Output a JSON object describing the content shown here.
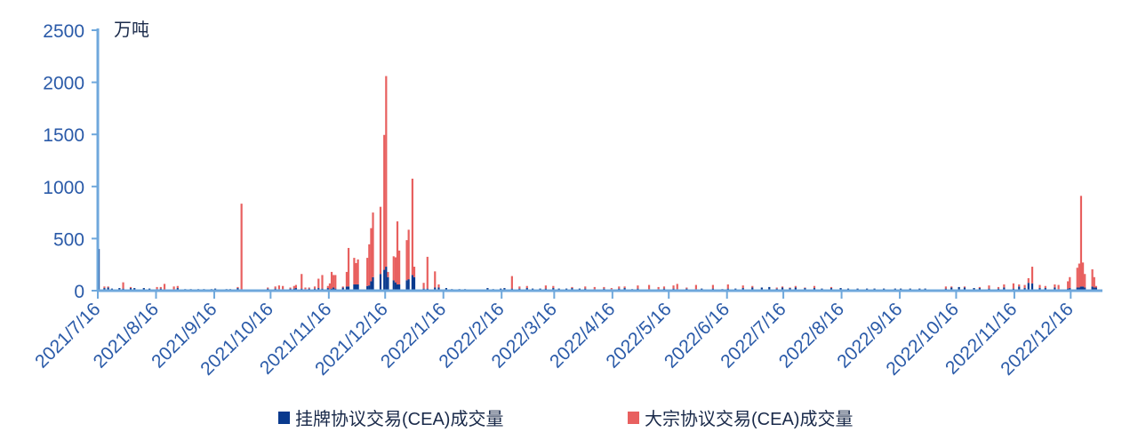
{
  "chart_data": {
    "type": "bar",
    "stacked": true,
    "unit_label": "万吨",
    "ylim": [
      0,
      2500
    ],
    "yticks": [
      0,
      500,
      1000,
      1500,
      2000,
      2500
    ],
    "xlim": [
      "2021-07-16",
      "2022-12-31"
    ],
    "xticks": [
      "2021/7/16",
      "2021/8/16",
      "2021/9/16",
      "2021/10/16",
      "2021/11/16",
      "2021/12/16",
      "2022/1/16",
      "2022/2/16",
      "2022/3/16",
      "2022/4/16",
      "2022/5/16",
      "2022/6/16",
      "2022/7/16",
      "2022/8/16",
      "2022/9/16",
      "2022/10/16",
      "2022/11/16",
      "2022/12/16"
    ],
    "grid": false,
    "legend_position": "bottom",
    "colors": {
      "listed": "#0a3a8e",
      "block": "#e8605f",
      "axis": "#6fa8dc",
      "tick_text": "#2a5aa8"
    },
    "series": [
      {
        "name": "挂牌协议交易(CEA)成交量",
        "color": "#0a3a8e"
      },
      {
        "name": "大宗协议交易(CEA)成交量",
        "color": "#e8605f"
      }
    ],
    "points_columns": [
      "date",
      "挂牌协议交易(CEA)成交量",
      "大宗协议交易(CEA)成交量"
    ],
    "points": [
      [
        "2021-07-16",
        400,
        0
      ],
      [
        "2021-07-19",
        25,
        15
      ],
      [
        "2021-07-21",
        30,
        10
      ],
      [
        "2021-07-23",
        20,
        0
      ],
      [
        "2021-07-27",
        25,
        0
      ],
      [
        "2021-07-29",
        20,
        60
      ],
      [
        "2021-08-02",
        25,
        10
      ],
      [
        "2021-08-04",
        25,
        0
      ],
      [
        "2021-08-09",
        25,
        0
      ],
      [
        "2021-08-12",
        20,
        0
      ],
      [
        "2021-08-16",
        15,
        20
      ],
      [
        "2021-08-18",
        20,
        15
      ],
      [
        "2021-08-20",
        10,
        55
      ],
      [
        "2021-08-25",
        10,
        30
      ],
      [
        "2021-08-27",
        25,
        20
      ],
      [
        "2021-08-31",
        15,
        0
      ],
      [
        "2021-09-03",
        15,
        0
      ],
      [
        "2021-09-07",
        15,
        0
      ],
      [
        "2021-09-10",
        15,
        0
      ],
      [
        "2021-09-14",
        15,
        0
      ],
      [
        "2021-09-16",
        20,
        0
      ],
      [
        "2021-09-22",
        15,
        0
      ],
      [
        "2021-09-24",
        15,
        0
      ],
      [
        "2021-09-28",
        25,
        10
      ],
      [
        "2021-09-30",
        15,
        820
      ],
      [
        "2021-10-12",
        10,
        0
      ],
      [
        "2021-10-14",
        20,
        10
      ],
      [
        "2021-10-18",
        20,
        20
      ],
      [
        "2021-10-20",
        15,
        35
      ],
      [
        "2021-10-22",
        15,
        30
      ],
      [
        "2021-10-26",
        20,
        10
      ],
      [
        "2021-10-28",
        20,
        25
      ],
      [
        "2021-10-29",
        25,
        30
      ],
      [
        "2021-11-01",
        20,
        140
      ],
      [
        "2021-11-03",
        15,
        15
      ],
      [
        "2021-11-05",
        20,
        10
      ],
      [
        "2021-11-08",
        20,
        20
      ],
      [
        "2021-11-10",
        25,
        90
      ],
      [
        "2021-11-12",
        20,
        130
      ],
      [
        "2021-11-15",
        25,
        20
      ],
      [
        "2021-11-16",
        10,
        60
      ],
      [
        "2021-11-17",
        20,
        160
      ],
      [
        "2021-11-18",
        30,
        120
      ],
      [
        "2021-11-19",
        20,
        130
      ],
      [
        "2021-11-23",
        30,
        10
      ],
      [
        "2021-11-25",
        40,
        140
      ],
      [
        "2021-11-26",
        40,
        370
      ],
      [
        "2021-11-29",
        60,
        255
      ],
      [
        "2021-11-30",
        60,
        205
      ],
      [
        "2021-12-01",
        60,
        240
      ],
      [
        "2021-12-06",
        45,
        270
      ],
      [
        "2021-12-07",
        50,
        395
      ],
      [
        "2021-12-08",
        90,
        510
      ],
      [
        "2021-12-09",
        130,
        620
      ],
      [
        "2021-12-13",
        160,
        645
      ],
      [
        "2021-12-15",
        200,
        1295
      ],
      [
        "2021-12-16",
        230,
        1830
      ],
      [
        "2021-12-17",
        130,
        50
      ],
      [
        "2021-12-20",
        100,
        230
      ],
      [
        "2021-12-21",
        80,
        240
      ],
      [
        "2021-12-22",
        60,
        605
      ],
      [
        "2021-12-23",
        60,
        325
      ],
      [
        "2021-12-27",
        100,
        385
      ],
      [
        "2021-12-28",
        110,
        475
      ],
      [
        "2021-12-30",
        150,
        925
      ],
      [
        "2021-12-31",
        130,
        100
      ],
      [
        "2022-01-05",
        20,
        55
      ],
      [
        "2022-01-07",
        20,
        305
      ],
      [
        "2022-01-11",
        30,
        155
      ],
      [
        "2022-01-13",
        30,
        30
      ],
      [
        "2022-01-17",
        25,
        0
      ],
      [
        "2022-01-20",
        15,
        0
      ],
      [
        "2022-01-24",
        15,
        0
      ],
      [
        "2022-01-27",
        15,
        0
      ],
      [
        "2022-02-08",
        25,
        0
      ],
      [
        "2022-02-11",
        15,
        0
      ],
      [
        "2022-02-15",
        20,
        0
      ],
      [
        "2022-02-17",
        25,
        0
      ],
      [
        "2022-02-21",
        20,
        120
      ],
      [
        "2022-02-25",
        20,
        20
      ],
      [
        "2022-03-01",
        25,
        20
      ],
      [
        "2022-03-04",
        20,
        0
      ],
      [
        "2022-03-08",
        20,
        0
      ],
      [
        "2022-03-11",
        20,
        30
      ],
      [
        "2022-03-15",
        25,
        20
      ],
      [
        "2022-03-18",
        20,
        0
      ],
      [
        "2022-03-22",
        20,
        0
      ],
      [
        "2022-03-25",
        25,
        10
      ],
      [
        "2022-03-29",
        20,
        0
      ],
      [
        "2022-04-01",
        20,
        20
      ],
      [
        "2022-04-06",
        15,
        20
      ],
      [
        "2022-04-11",
        20,
        15
      ],
      [
        "2022-04-15",
        15,
        10
      ],
      [
        "2022-04-19",
        20,
        20
      ],
      [
        "2022-04-22",
        25,
        15
      ],
      [
        "2022-04-26",
        15,
        0
      ],
      [
        "2022-04-29",
        20,
        30
      ],
      [
        "2022-05-05",
        15,
        40
      ],
      [
        "2022-05-10",
        15,
        20
      ],
      [
        "2022-05-13",
        20,
        20
      ],
      [
        "2022-05-18",
        20,
        30
      ],
      [
        "2022-05-20",
        15,
        50
      ],
      [
        "2022-05-25",
        20,
        10
      ],
      [
        "2022-05-30",
        15,
        40
      ],
      [
        "2022-06-02",
        20,
        0
      ],
      [
        "2022-06-08",
        20,
        35
      ],
      [
        "2022-06-13",
        15,
        0
      ],
      [
        "2022-06-16",
        20,
        40
      ],
      [
        "2022-06-20",
        20,
        0
      ],
      [
        "2022-06-24",
        25,
        25
      ],
      [
        "2022-06-29",
        30,
        15
      ],
      [
        "2022-07-04",
        30,
        0
      ],
      [
        "2022-07-08",
        35,
        0
      ],
      [
        "2022-07-12",
        20,
        10
      ],
      [
        "2022-07-15",
        30,
        10
      ],
      [
        "2022-07-19",
        25,
        5
      ],
      [
        "2022-07-22",
        30,
        15
      ],
      [
        "2022-07-27",
        25,
        5
      ],
      [
        "2022-08-01",
        25,
        20
      ],
      [
        "2022-08-05",
        20,
        0
      ],
      [
        "2022-08-10",
        25,
        10
      ],
      [
        "2022-08-15",
        25,
        0
      ],
      [
        "2022-08-19",
        20,
        0
      ],
      [
        "2022-08-24",
        20,
        0
      ],
      [
        "2022-08-29",
        20,
        0
      ],
      [
        "2022-09-02",
        20,
        0
      ],
      [
        "2022-09-07",
        20,
        0
      ],
      [
        "2022-09-13",
        20,
        0
      ],
      [
        "2022-09-16",
        20,
        0
      ],
      [
        "2022-09-21",
        20,
        0
      ],
      [
        "2022-09-26",
        20,
        0
      ],
      [
        "2022-09-29",
        20,
        0
      ],
      [
        "2022-10-10",
        20,
        20
      ],
      [
        "2022-10-13",
        30,
        10
      ],
      [
        "2022-10-17",
        35,
        0
      ],
      [
        "2022-10-20",
        30,
        10
      ],
      [
        "2022-10-25",
        25,
        0
      ],
      [
        "2022-10-28",
        25,
        10
      ],
      [
        "2022-11-02",
        20,
        30
      ],
      [
        "2022-11-07",
        20,
        15
      ],
      [
        "2022-11-10",
        30,
        30
      ],
      [
        "2022-11-15",
        20,
        50
      ],
      [
        "2022-11-18",
        40,
        20
      ],
      [
        "2022-11-21",
        25,
        30
      ],
      [
        "2022-11-23",
        75,
        45
      ],
      [
        "2022-11-25",
        70,
        160
      ],
      [
        "2022-11-29",
        25,
        30
      ],
      [
        "2022-12-02",
        25,
        20
      ],
      [
        "2022-12-07",
        30,
        30
      ],
      [
        "2022-12-09",
        15,
        40
      ],
      [
        "2022-12-14",
        20,
        70
      ],
      [
        "2022-12-15",
        25,
        105
      ],
      [
        "2022-12-19",
        30,
        190
      ],
      [
        "2022-12-20",
        30,
        230
      ],
      [
        "2022-12-21",
        40,
        870
      ],
      [
        "2022-12-22",
        40,
        230
      ],
      [
        "2022-12-23",
        30,
        130
      ],
      [
        "2022-12-27",
        40,
        165
      ],
      [
        "2022-12-28",
        30,
        100
      ],
      [
        "2022-12-29",
        30,
        15
      ]
    ]
  }
}
